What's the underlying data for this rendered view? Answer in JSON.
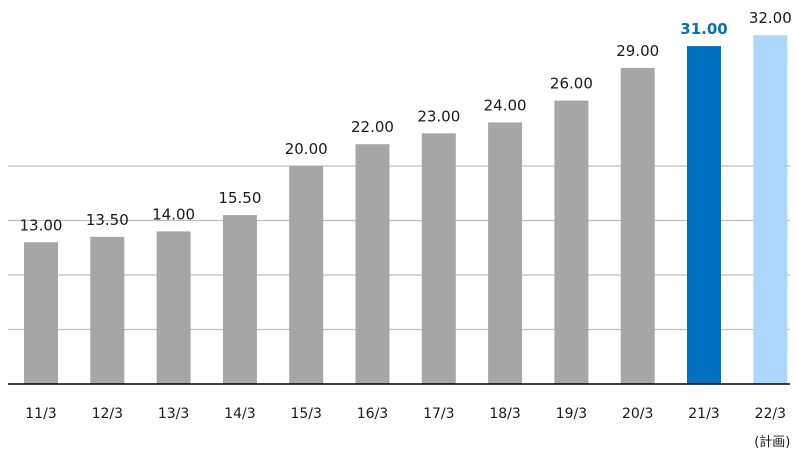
{
  "chart_data": {
    "type": "bar",
    "categories": [
      "11/3",
      "12/3",
      "13/3",
      "14/3",
      "15/3",
      "16/3",
      "17/3",
      "18/3",
      "19/3",
      "20/3",
      "21/3",
      "22/3"
    ],
    "category_sublabels": {
      "22/3": "(計画)"
    },
    "values": [
      13.0,
      13.5,
      14.0,
      15.5,
      20.0,
      22.0,
      23.0,
      24.0,
      26.0,
      29.0,
      31.0,
      32.0
    ],
    "data_labels": [
      "13.00",
      "13.50",
      "14.00",
      "15.50",
      "20.00",
      "22.00",
      "23.00",
      "24.00",
      "26.00",
      "29.00",
      "31.00",
      "32.00"
    ],
    "ylim": [
      0,
      35
    ],
    "grid": true,
    "grid_values": [
      5,
      10,
      15,
      20
    ],
    "colors": {
      "default": "#a6a6a6",
      "highlight": "#0070c0",
      "planned": "#add6ff",
      "highlight_label": "#0070c0",
      "label": "#1a1a1a",
      "grid": "#bfbfbf",
      "axis": "#000000"
    },
    "highlight_index": 10,
    "planned_index": 11
  }
}
